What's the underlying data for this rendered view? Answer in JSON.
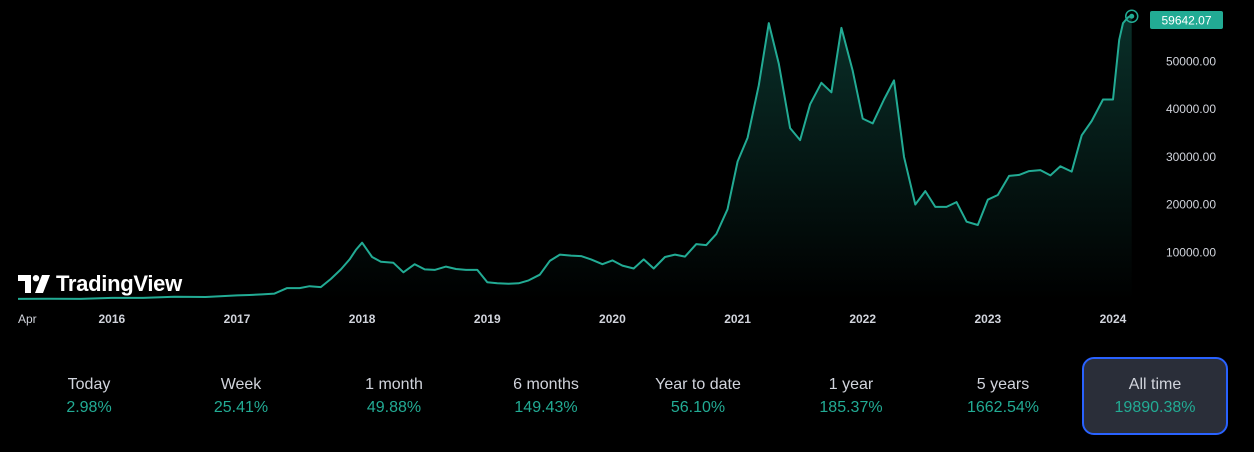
{
  "chart_data": {
    "type": "area",
    "x_ticks": [
      "Apr",
      "2016",
      "2017",
      "2018",
      "2019",
      "2020",
      "2021",
      "2022",
      "2023",
      "2024"
    ],
    "y_ticks": [
      "10000.00",
      "20000.00",
      "30000.00",
      "40000.00",
      "50000.00"
    ],
    "ylim": [
      0,
      62000
    ],
    "x_range": [
      2015.25,
      2024.2
    ],
    "last_value": "59642.07",
    "colors": {
      "line": "#22ab94",
      "label_bg": "#22ab94",
      "area_top": "rgba(34,171,148,0.28)",
      "area_bottom": "rgba(34,171,148,0.0)"
    },
    "series": [
      {
        "x": [
          2015.25,
          2015.5,
          2015.75,
          2016.0,
          2016.25,
          2016.5,
          2016.75,
          2017.0,
          2017.1,
          2017.2,
          2017.3,
          2017.4,
          2017.5,
          2017.58,
          2017.67,
          2017.75,
          2017.83,
          2017.9,
          2017.95,
          2018.0,
          2018.08,
          2018.15,
          2018.25,
          2018.33,
          2018.42,
          2018.5,
          2018.58,
          2018.67,
          2018.75,
          2018.83,
          2018.92,
          2019.0,
          2019.08,
          2019.17,
          2019.25,
          2019.33,
          2019.42,
          2019.5,
          2019.58,
          2019.67,
          2019.75,
          2019.83,
          2019.92,
          2020.0,
          2020.08,
          2020.17,
          2020.25,
          2020.33,
          2020.42,
          2020.5,
          2020.58,
          2020.67,
          2020.75,
          2020.83,
          2020.92,
          2021.0,
          2021.08,
          2021.17,
          2021.25,
          2021.33,
          2021.42,
          2021.5,
          2021.58,
          2021.67,
          2021.75,
          2021.83,
          2021.92,
          2022.0,
          2022.08,
          2022.17,
          2022.25,
          2022.33,
          2022.42,
          2022.5,
          2022.58,
          2022.67,
          2022.75,
          2022.83,
          2022.92,
          2023.0,
          2023.08,
          2023.17,
          2023.25,
          2023.33,
          2023.42,
          2023.5,
          2023.58,
          2023.67,
          2023.75,
          2023.83,
          2023.92,
          2024.0,
          2024.05,
          2024.08,
          2024.12,
          2024.15
        ],
        "y": [
          240,
          260,
          240,
          430,
          450,
          680,
          620,
          970,
          1040,
          1180,
          1350,
          2500,
          2500,
          2900,
          2700,
          4400,
          6400,
          8500,
          10500,
          12000,
          9000,
          8000,
          7800,
          5800,
          7500,
          6400,
          6300,
          7000,
          6500,
          6300,
          6300,
          3700,
          3500,
          3400,
          3500,
          4100,
          5300,
          8200,
          9500,
          9300,
          9200,
          8500,
          7500,
          8300,
          7200,
          6600,
          8500,
          6600,
          9000,
          9500,
          9100,
          11700,
          11500,
          13800,
          19000,
          29000,
          34000,
          45000,
          58000,
          49500,
          36000,
          33500,
          41000,
          45500,
          43500,
          57000,
          48000,
          38000,
          37000,
          42000,
          46000,
          30000,
          20000,
          22800,
          19500,
          19500,
          20500,
          16400,
          15700,
          21000,
          22000,
          26000,
          26200,
          27000,
          27200,
          26100,
          28000,
          26900,
          34500,
          37500,
          42000,
          42000,
          54500,
          58000,
          59200,
          59642
        ]
      }
    ]
  },
  "periods": [
    {
      "label": "Today",
      "value": "2.98%"
    },
    {
      "label": "Week",
      "value": "25.41%"
    },
    {
      "label": "1 month",
      "value": "49.88%"
    },
    {
      "label": "6 months",
      "value": "149.43%"
    },
    {
      "label": "Year to date",
      "value": "56.10%"
    },
    {
      "label": "1 year",
      "value": "185.37%"
    },
    {
      "label": "5 years",
      "value": "1662.54%"
    },
    {
      "label": "All time",
      "value": "19890.38%"
    }
  ],
  "active_period": "All time",
  "logo": {
    "text": "TradingView"
  }
}
